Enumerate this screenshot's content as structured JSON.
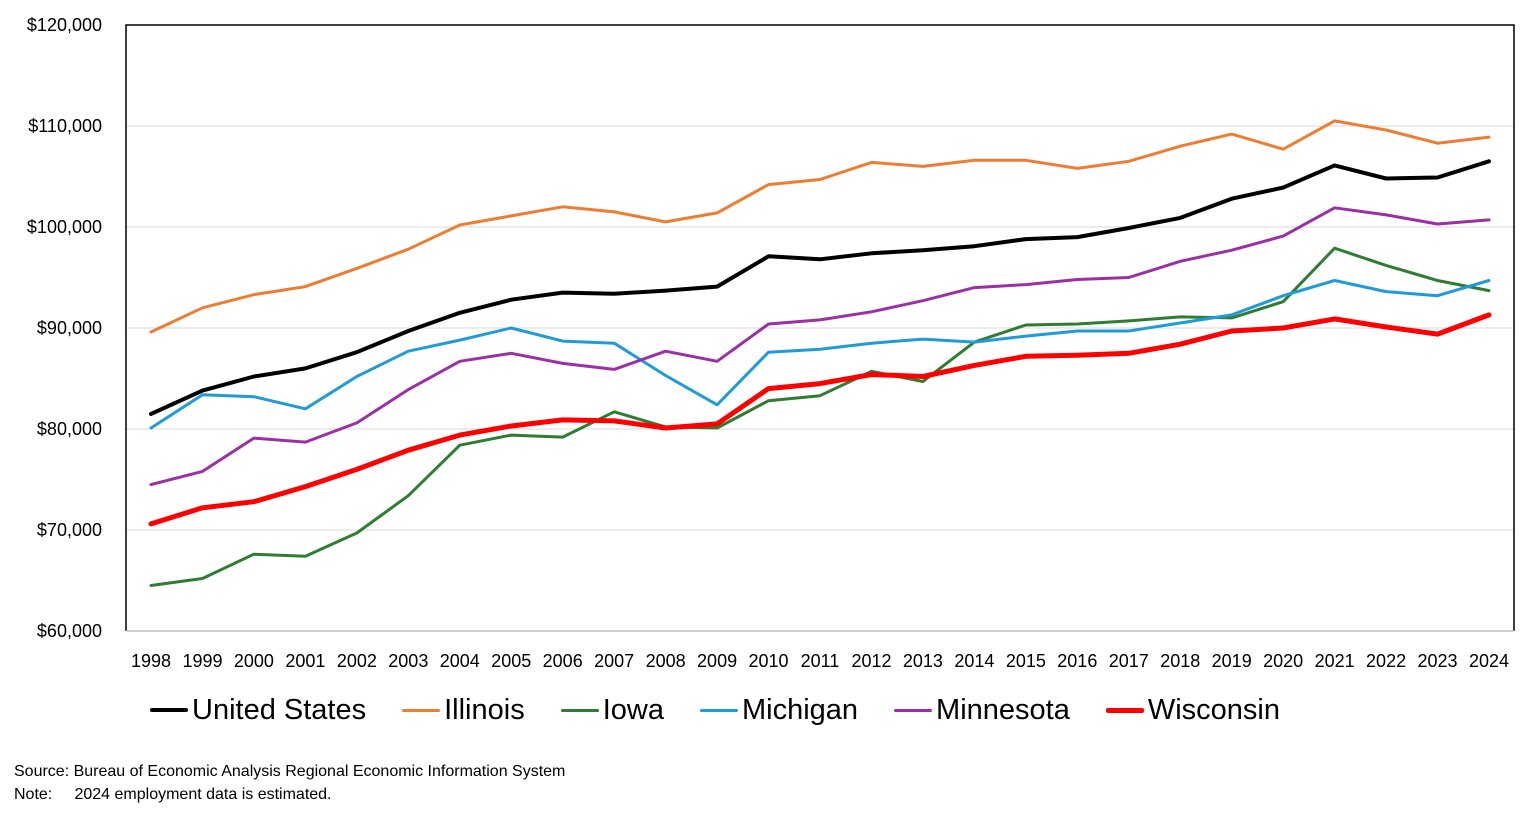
{
  "chart_data": {
    "type": "line",
    "title": "",
    "xlabel": "",
    "ylabel": "",
    "ylim": [
      60000,
      120000
    ],
    "y_ticks": [
      60000,
      70000,
      80000,
      90000,
      100000,
      110000,
      120000
    ],
    "y_tick_labels": [
      "$60,000",
      "$70,000",
      "$80,000",
      "$90,000",
      "$100,000",
      "$110,000",
      "$120,000"
    ],
    "grid": true,
    "legend_position": "bottom",
    "x": [
      "1998",
      "1999",
      "2000",
      "2001",
      "2002",
      "2003",
      "2004",
      "2005",
      "2006",
      "2007",
      "2008",
      "2009",
      "2010",
      "2011",
      "2012",
      "2013",
      "2014",
      "2015",
      "2016",
      "2017",
      "2018",
      "2019",
      "2020",
      "2021",
      "2022",
      "2023",
      "2024"
    ],
    "series": [
      {
        "name": "United States",
        "color": "#000000",
        "width": 4,
        "values": [
          81500,
          83800,
          85200,
          86000,
          87600,
          89700,
          91500,
          92800,
          93500,
          93400,
          93700,
          94100,
          97100,
          96800,
          97400,
          97700,
          98100,
          98800,
          99000,
          99900,
          100900,
          102800,
          103900,
          106100,
          104800,
          104900,
          106500
        ]
      },
      {
        "name": "Illinois",
        "color": "#ED7D31",
        "width": 3,
        "values": [
          89600,
          92000,
          93300,
          94100,
          95900,
          97800,
          100200,
          101100,
          102000,
          101500,
          100500,
          101400,
          104200,
          104700,
          106400,
          106000,
          106600,
          106600,
          105800,
          106500,
          108000,
          109200,
          107700,
          110500,
          109600,
          108300,
          108900
        ]
      },
      {
        "name": "Iowa",
        "color": "#2E7D32",
        "width": 3,
        "values": [
          64500,
          65200,
          67600,
          67400,
          69700,
          73400,
          78400,
          79400,
          79200,
          81700,
          80200,
          80100,
          82800,
          83300,
          85700,
          84700,
          88600,
          90300,
          90400,
          90700,
          91100,
          91000,
          92600,
          97900,
          96200,
          94700,
          93700
        ]
      },
      {
        "name": "Michigan",
        "color": "#1F9BD7",
        "width": 3,
        "values": [
          80100,
          83400,
          83200,
          82000,
          85200,
          87700,
          88800,
          90000,
          88700,
          88500,
          85300,
          82400,
          87600,
          87900,
          88500,
          88900,
          88600,
          89200,
          89700,
          89700,
          90500,
          91300,
          93200,
          94700,
          93600,
          93200,
          94700
        ]
      },
      {
        "name": "Minnesota",
        "color": "#9B2FA6",
        "width": 3,
        "values": [
          74500,
          75800,
          79100,
          78700,
          80600,
          83900,
          86700,
          87500,
          86500,
          85900,
          87700,
          86700,
          90400,
          90800,
          91600,
          92700,
          94000,
          94300,
          94800,
          95000,
          96600,
          97700,
          99100,
          101900,
          101200,
          100300,
          100700
        ]
      },
      {
        "name": "Wisconsin",
        "color": "#FF0000",
        "width": 5,
        "values": [
          70600,
          72200,
          72800,
          74300,
          76000,
          77900,
          79400,
          80300,
          80900,
          80800,
          80100,
          80500,
          84000,
          84500,
          85400,
          85200,
          86300,
          87200,
          87300,
          87500,
          88400,
          89700,
          90000,
          90900,
          90100,
          89400,
          91300
        ]
      }
    ]
  },
  "notes": {
    "source": "Source: Bureau of Economic Analysis Regional Economic Information System",
    "note": "Note:     2024 employment data is estimated."
  }
}
